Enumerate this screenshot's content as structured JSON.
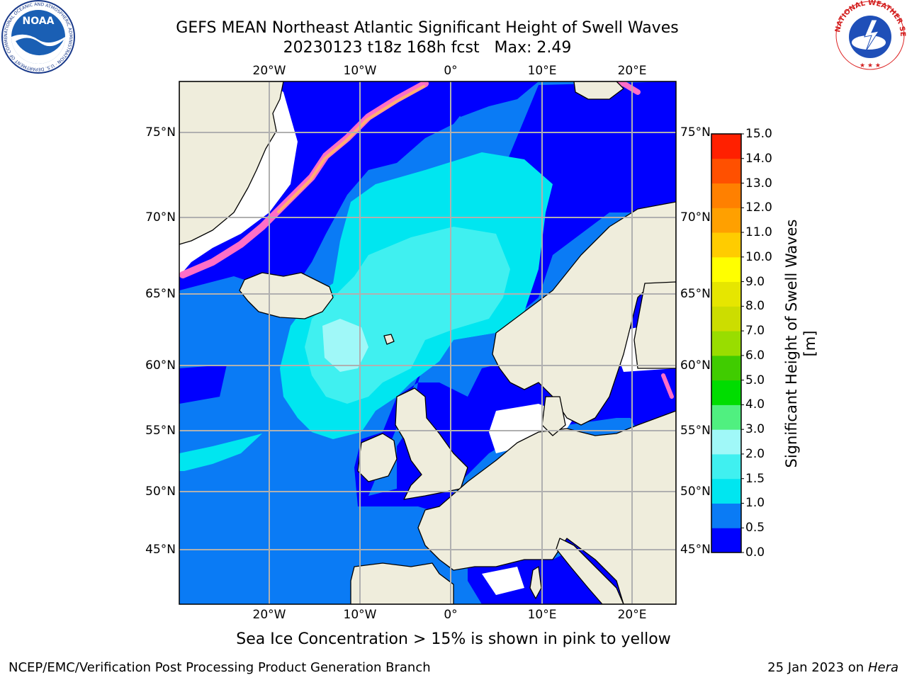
{
  "title": {
    "line1": "GEFS MEAN Northeast Atlantic Significant Height of Swell Waves",
    "line2": "20230123 t18z 168h fcst   Max: 2.49"
  },
  "map": {
    "lon_range": [
      -30,
      25
    ],
    "lat_range": [
      41,
      78
    ],
    "lon_ticks": [
      "20°W",
      "10°W",
      "0°",
      "10°E",
      "20°E"
    ],
    "lat_ticks": [
      "75°N",
      "70°N",
      "65°N",
      "60°N",
      "55°N",
      "50°N",
      "45°N"
    ],
    "grid": true,
    "colors": {
      "land": "#efeddc",
      "ocean": "#0a7bf5",
      "ice_free_white": "#ffffff",
      "grid": "#b0b0b0",
      "coast": "#000000"
    }
  },
  "colorbar": {
    "label": "Significant Height of Swell Waves [m]",
    "ticks": [
      "0.0",
      "0.5",
      "1.0",
      "1.5",
      "2.0",
      "3.0",
      "4.0",
      "5.0",
      "6.0",
      "7.0",
      "8.0",
      "9.0",
      "10.0",
      "11.0",
      "12.0",
      "13.0",
      "14.0",
      "15.0"
    ],
    "colors": [
      "#0000ff",
      "#0a7bf5",
      "#00e6f0",
      "#40f0f0",
      "#a0f8f8",
      "#50f080",
      "#00dd00",
      "#40cc00",
      "#99dd00",
      "#ccdd00",
      "#e6e600",
      "#ffff00",
      "#ffcc00",
      "#ffa000",
      "#ff8000",
      "#ff5000",
      "#ff2000"
    ]
  },
  "caption": "Sea Ice Concentration > 15% is shown in pink to yellow",
  "footer": {
    "left": "NCEP/EMC/Verification Post Processing Product Generation Branch",
    "right_date": "25 Jan 2023 on",
    "right_host": "Hera"
  },
  "logos": {
    "noaa": "NOAA",
    "noaa_ring": "NATIONAL OCEANIC AND ATMOSPHERIC ADMINISTRATION · U.S. DEPARTMENT OF COMMERCE ·",
    "nws_ring": "NATIONAL WEATHER SERVICE"
  },
  "icons": [
    "noaa-logo",
    "nws-logo"
  ]
}
